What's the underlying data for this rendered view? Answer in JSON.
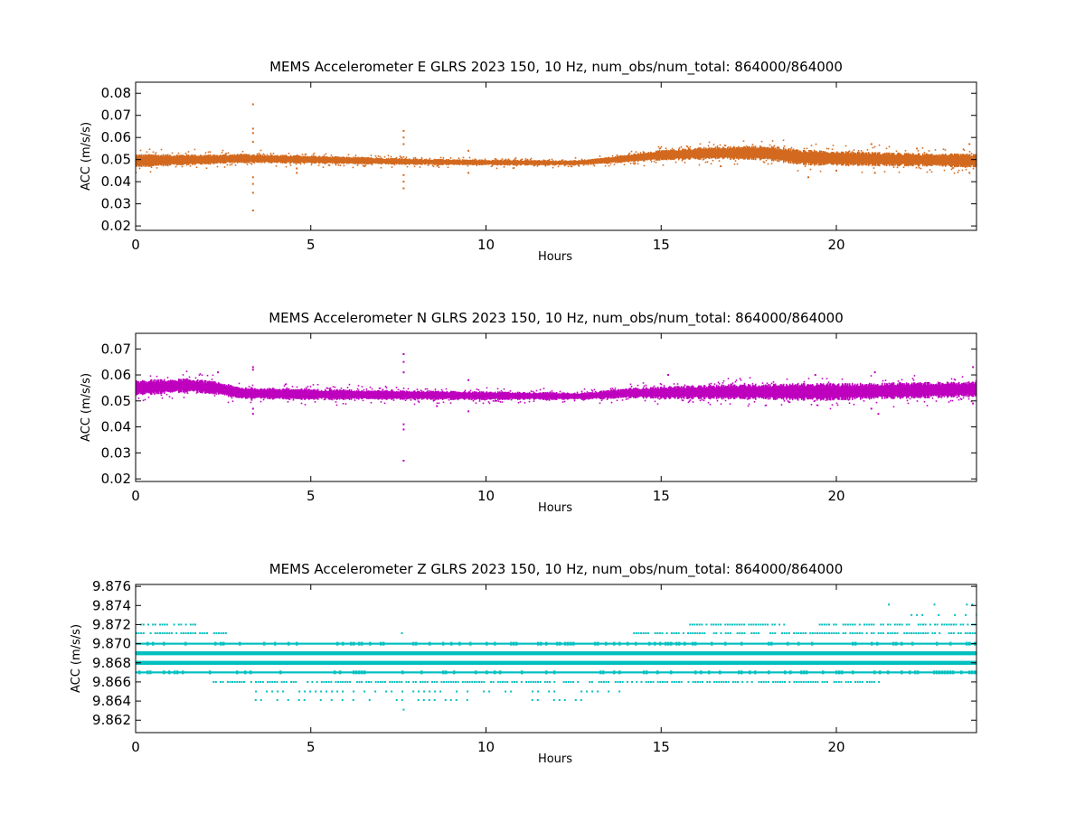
{
  "chart_data": [
    {
      "type": "scatter",
      "title": "MEMS Accelerometer E GLRS 2023 150, 10 Hz, num_obs/num_total: 864000/864000",
      "xlabel": "Hours",
      "ylabel": "ACC (m/s/s)",
      "xlim": [
        0,
        24
      ],
      "ylim": [
        0.018,
        0.085
      ],
      "xticks": [
        0,
        5,
        10,
        15,
        20
      ],
      "xtick_labels": [
        "0",
        "5",
        "10",
        "15",
        "20"
      ],
      "yticks": [
        0.02,
        0.03,
        0.04,
        0.05,
        0.06,
        0.07,
        0.08
      ],
      "ytick_labels": [
        "0.02",
        "0.03",
        "0.04",
        "0.05",
        "0.06",
        "0.07",
        "0.08"
      ],
      "color": "#d2691e",
      "grid": false,
      "series": [
        {
          "trend": [
            [
              0,
              0.0495
            ],
            [
              2,
              0.05
            ],
            [
              3,
              0.0505
            ],
            [
              5,
              0.05
            ],
            [
              8,
              0.049
            ],
            [
              10,
              0.0487
            ],
            [
              12.5,
              0.0485
            ],
            [
              13.5,
              0.0497
            ],
            [
              15,
              0.052
            ],
            [
              16.5,
              0.053
            ],
            [
              18,
              0.053
            ],
            [
              19,
              0.051
            ],
            [
              20,
              0.0505
            ],
            [
              22,
              0.05
            ],
            [
              24,
              0.0495
            ]
          ],
          "band_halfwidth": [
            [
              0,
              0.0025
            ],
            [
              2.5,
              0.0018
            ],
            [
              8,
              0.0012
            ],
            [
              13,
              0.001
            ],
            [
              15,
              0.002
            ],
            [
              19,
              0.003
            ],
            [
              22,
              0.0025
            ],
            [
              24,
              0.0025
            ]
          ],
          "outliers": [
            [
              3.35,
              0.075
            ],
            [
              3.35,
              0.027
            ],
            [
              3.35,
              0.035
            ],
            [
              3.35,
              0.064
            ],
            [
              3.35,
              0.058
            ],
            [
              3.35,
              0.042
            ],
            [
              3.35,
              0.039
            ],
            [
              3.35,
              0.062
            ],
            [
              7.65,
              0.063
            ],
            [
              7.65,
              0.06
            ],
            [
              7.65,
              0.04
            ],
            [
              7.65,
              0.037
            ],
            [
              7.65,
              0.043
            ],
            [
              7.65,
              0.057
            ],
            [
              4.6,
              0.044
            ],
            [
              4.6,
              0.046
            ],
            [
              9.5,
              0.044
            ],
            [
              9.5,
              0.054
            ],
            [
              19.2,
              0.042
            ],
            [
              21.0,
              0.057
            ],
            [
              21.1,
              0.044
            ],
            [
              23.8,
              0.057
            ],
            [
              23.8,
              0.044
            ],
            [
              20.0,
              0.045
            ],
            [
              22.3,
              0.055
            ],
            [
              16.7,
              0.047
            ]
          ]
        }
      ]
    },
    {
      "type": "scatter",
      "title": "MEMS Accelerometer N GLRS 2023 150, 10 Hz, num_obs/num_total: 864000/864000",
      "xlabel": "Hours",
      "ylabel": "ACC (m/s/s)",
      "xlim": [
        0,
        24
      ],
      "ylim": [
        0.019,
        0.076
      ],
      "xticks": [
        0,
        5,
        10,
        15,
        20
      ],
      "xtick_labels": [
        "0",
        "5",
        "10",
        "15",
        "20"
      ],
      "yticks": [
        0.02,
        0.03,
        0.04,
        0.05,
        0.06,
        0.07
      ],
      "ytick_labels": [
        "0.02",
        "0.03",
        "0.04",
        "0.05",
        "0.06",
        "0.07"
      ],
      "color": "#bf00bf",
      "grid": false,
      "series": [
        {
          "trend": [
            [
              0,
              0.055
            ],
            [
              1.5,
              0.056
            ],
            [
              2.3,
              0.055
            ],
            [
              3.0,
              0.053
            ],
            [
              5,
              0.0525
            ],
            [
              10,
              0.052
            ],
            [
              12.8,
              0.0518
            ],
            [
              14,
              0.053
            ],
            [
              17,
              0.0535
            ],
            [
              20,
              0.0535
            ],
            [
              24,
              0.0545
            ]
          ],
          "band_halfwidth": [
            [
              0,
              0.0025
            ],
            [
              2.5,
              0.002
            ],
            [
              8,
              0.0015
            ],
            [
              13,
              0.0012
            ],
            [
              15,
              0.002
            ],
            [
              19,
              0.0028
            ],
            [
              24,
              0.0025
            ]
          ],
          "outliers": [
            [
              3.35,
              0.063
            ],
            [
              3.35,
              0.045
            ],
            [
              3.35,
              0.062
            ],
            [
              3.35,
              0.047
            ],
            [
              7.65,
              0.068
            ],
            [
              7.65,
              0.027
            ],
            [
              7.65,
              0.041
            ],
            [
              7.65,
              0.039
            ],
            [
              7.65,
              0.061
            ],
            [
              7.65,
              0.065
            ],
            [
              2.35,
              0.061
            ],
            [
              9.5,
              0.058
            ],
            [
              9.5,
              0.046
            ],
            [
              15.2,
              0.06
            ],
            [
              19.4,
              0.06
            ],
            [
              21.1,
              0.061
            ],
            [
              21.0,
              0.047
            ],
            [
              21.2,
              0.045
            ],
            [
              23.9,
              0.063
            ],
            [
              23.9,
              0.049
            ],
            [
              8.6,
              0.048
            ]
          ]
        }
      ]
    },
    {
      "type": "scatter",
      "title": "MEMS Accelerometer Z GLRS 2023 150, 10 Hz, num_obs/num_total: 864000/864000",
      "xlabel": "Hours",
      "ylabel": "ACC (m/s/s)",
      "xlim": [
        0,
        24
      ],
      "ylim": [
        9.8607,
        9.8762
      ],
      "xticks": [
        0,
        5,
        10,
        15,
        20
      ],
      "xtick_labels": [
        "0",
        "5",
        "10",
        "15",
        "20"
      ],
      "yticks": [
        9.862,
        9.864,
        9.866,
        9.868,
        9.87,
        9.872,
        9.874,
        9.876
      ],
      "ytick_labels": [
        "9.862",
        "9.864",
        "9.866",
        "9.868",
        "9.870",
        "9.872",
        "9.874",
        "9.876"
      ],
      "color": "#00bfbf",
      "grid": false,
      "series": [
        {
          "levels": [
            {
              "y": 9.8741,
              "segments": [
                [
                  21.5,
                  21.5
                ],
                [
                  22.8,
                  22.8
                ],
                [
                  23.7,
                  24.0
                ]
              ],
              "density": "sparse"
            },
            {
              "y": 9.873,
              "segments": [
                [
                  21.5,
                  24.0
                ]
              ],
              "density": "sparse"
            },
            {
              "y": 9.872,
              "segments": [
                [
                  0.0,
                  1.8
                ],
                [
                  15.8,
                  18.5
                ],
                [
                  19.5,
                  24.0
                ]
              ],
              "density": "medium"
            },
            {
              "y": 9.8711,
              "segments": [
                [
                  0.0,
                  2.6
                ],
                [
                  7.6,
                  7.6
                ],
                [
                  14.2,
                  24.0
                ]
              ],
              "density": "medium"
            },
            {
              "y": 9.87,
              "segments": [
                [
                  0.0,
                  24.0
                ]
              ],
              "density": "dense"
            },
            {
              "y": 9.869,
              "segments": [
                [
                  0.0,
                  24.0
                ]
              ],
              "density": "solid"
            },
            {
              "y": 9.868,
              "segments": [
                [
                  0.0,
                  24.0
                ]
              ],
              "density": "solid"
            },
            {
              "y": 9.867,
              "segments": [
                [
                  0.0,
                  24.0
                ]
              ],
              "density": "dense"
            },
            {
              "y": 9.866,
              "segments": [
                [
                  2.2,
                  21.2
                ]
              ],
              "density": "medium"
            },
            {
              "y": 9.865,
              "segments": [
                [
                  3.1,
                  13.8
                ]
              ],
              "density": "sparse"
            },
            {
              "y": 9.8641,
              "segments": [
                [
                  3.4,
                  13.0
                ]
              ],
              "density": "sparse"
            },
            {
              "y": 9.8631,
              "segments": [
                [
                  7.65,
                  7.65
                ]
              ],
              "density": "sparse"
            }
          ]
        }
      ]
    }
  ]
}
